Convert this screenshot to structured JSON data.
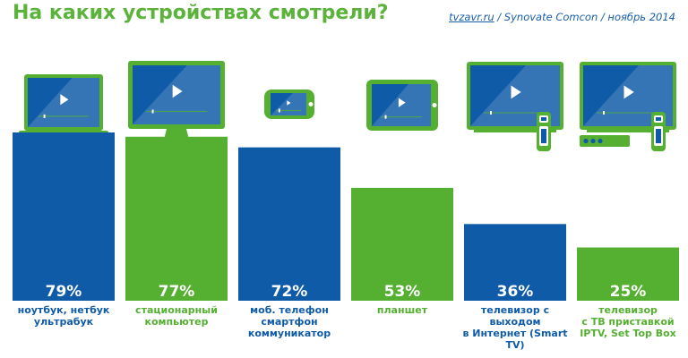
{
  "header": {
    "title": "На каких устройствах смотрели?",
    "source_site": "tvzavr.ru",
    "source_rest": " / Synovate Comcon / ноябрь 2014"
  },
  "colors": {
    "blue": "#0f5ba8",
    "green": "#55b032",
    "title": "#5bb33b"
  },
  "chart_data": {
    "type": "bar",
    "categories": [
      "ноутбук, нетбук\nультрабук",
      "стационарный\nкомпьютер",
      "моб. телефон\nсмартфон\nкоммуникатор",
      "планшет",
      "телевизор с выходом\nв Интернет (Smart TV)",
      "телевизор\nс ТВ приставкой\nIPTV, Set Top Box"
    ],
    "values": [
      79,
      77,
      72,
      53,
      36,
      25
    ],
    "value_labels": [
      "79%",
      "77%",
      "72%",
      "53%",
      "36%",
      "25%"
    ],
    "bar_colors": [
      "blue",
      "green",
      "blue",
      "green",
      "blue",
      "green"
    ],
    "icons": [
      "laptop-icon",
      "desktop-monitor-icon",
      "smartphone-icon",
      "tablet-icon",
      "smart-tv-remote-icon",
      "tv-set-top-box-icon"
    ],
    "ylim": [
      0,
      100
    ]
  }
}
